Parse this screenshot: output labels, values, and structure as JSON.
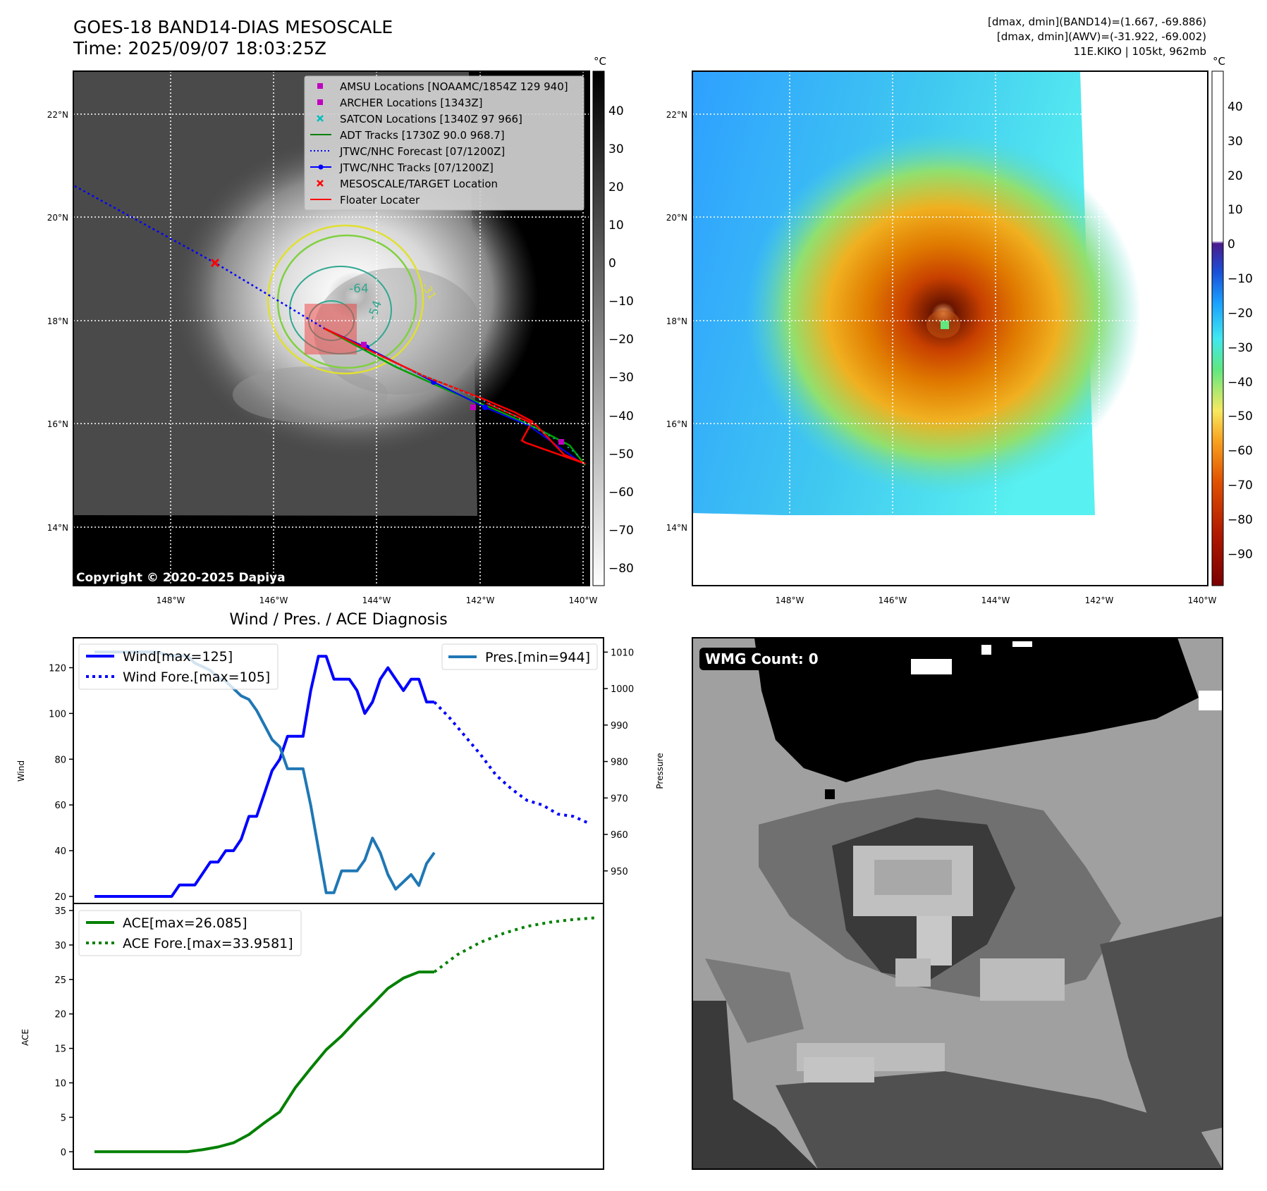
{
  "header": {
    "title_line1": "GOES-18 BAND14-DIAS MESOSCALE",
    "title_line2": "Time: 2025/09/07 18:03:25Z",
    "info_line1": "[dmax, dmin](BAND14)=(1.667, -69.886)",
    "info_line2": "[dmax, dmin](AWV)=(-31.922, -69.002)",
    "info_line3": "11E.KIKO | 105kt, 962mb"
  },
  "map_axes": {
    "lat_labels": [
      "22°N",
      "20°N",
      "18°N",
      "16°N",
      "14°N"
    ],
    "lon_labels": [
      "148°W",
      "146°W",
      "144°W",
      "142°W",
      "140°W"
    ]
  },
  "ir_panel": {
    "copyright": "Copyright © 2020-2025 Dapiya",
    "colorbar_unit": "°C",
    "colorbar_ticks": [
      "40",
      "30",
      "20",
      "10",
      "0",
      "−10",
      "−20",
      "−30",
      "−40",
      "−50",
      "−60",
      "−70",
      "−80"
    ],
    "contour_labels": [
      "-64",
      "-54",
      "-31"
    ],
    "legend": [
      {
        "label": "AMSU Locations [NOAAMC/1854Z 129 940]",
        "color": "#c000c0",
        "marker": "square"
      },
      {
        "label": "ARCHER Locations [1343Z]",
        "color": "#c000c0",
        "marker": "square"
      },
      {
        "label": "SATCON Locations [1340Z 97 966]",
        "color": "#00bfbf",
        "marker": "x"
      },
      {
        "label": "ADT Tracks [1730Z 90.0 968.7]",
        "color": "#008000",
        "marker": "line"
      },
      {
        "label": "JTWC/NHC Forecast [07/1200Z]",
        "color": "#0000ff",
        "marker": "dotted"
      },
      {
        "label": "JTWC/NHC Tracks [07/1200Z]",
        "color": "#0000ff",
        "marker": "line-dot"
      },
      {
        "label": "MESOSCALE/TARGET Location",
        "color": "#ff0000",
        "marker": "x"
      },
      {
        "label": "Floater Locater",
        "color": "#ff0000",
        "marker": "line"
      }
    ]
  },
  "wv_panel": {
    "colorbar_unit": "°C",
    "colorbar_ticks": [
      "40",
      "30",
      "20",
      "10",
      "0",
      "−10",
      "−20",
      "−30",
      "−40",
      "−50",
      "−60",
      "−70",
      "−80",
      "−90"
    ]
  },
  "wmg_panel": {
    "label": "WMG Count: 0"
  },
  "chart_data": [
    {
      "type": "line",
      "title": "Wind / Pres. / ACE Diagnosis",
      "ylabel": "Wind",
      "ylabel2": "Pressure",
      "ylim": [
        20,
        130
      ],
      "ylim2": [
        943,
        1012
      ],
      "xlim": [
        0,
        65
      ],
      "yticks": [
        20,
        40,
        60,
        80,
        100,
        120
      ],
      "yticks2": [
        950,
        960,
        970,
        980,
        990,
        1000,
        1010
      ],
      "series": [
        {
          "name": "Wind[max=125]",
          "color": "#0000ff",
          "style": "solid",
          "x": [
            0,
            2,
            4,
            6,
            8,
            9,
            10,
            11,
            12,
            13,
            14,
            15,
            16,
            17,
            18,
            19,
            20,
            21,
            22,
            23,
            24,
            25,
            26,
            27,
            28,
            29,
            30,
            31,
            32,
            33,
            34,
            35,
            36,
            37,
            38,
            39,
            40,
            41,
            42,
            43,
            44
          ],
          "y": [
            20,
            20,
            20,
            20,
            20,
            20,
            20,
            25,
            25,
            25,
            30,
            35,
            35,
            40,
            40,
            45,
            55,
            55,
            65,
            75,
            80,
            90,
            90,
            90,
            110,
            125,
            125,
            115,
            115,
            115,
            110,
            100,
            105,
            115,
            120,
            115,
            110,
            115,
            115,
            105,
            105
          ]
        },
        {
          "name": "Wind Fore.[max=105]",
          "color": "#0000ff",
          "style": "dotted",
          "x": [
            44,
            46,
            48,
            50,
            52,
            54,
            56,
            58,
            60,
            62,
            64
          ],
          "y": [
            105,
            98,
            90,
            82,
            73,
            67,
            62,
            60,
            56,
            55,
            52
          ]
        },
        {
          "name": "Pres.[min=944]",
          "color": "#1f77b4",
          "style": "solid",
          "axis": "right",
          "x": [
            0,
            2,
            4,
            6,
            8,
            10,
            12,
            13,
            14,
            15,
            16,
            17,
            18,
            19,
            20,
            21,
            22,
            23,
            24,
            25,
            26,
            27,
            28,
            29,
            30,
            31,
            32,
            33,
            34,
            35,
            36,
            37,
            38,
            39,
            40,
            41,
            42,
            43,
            44
          ],
          "y": [
            1010,
            1010,
            1010,
            1010,
            1010,
            1009,
            1009,
            1007,
            1006,
            1005,
            1003,
            1002,
            1000,
            998,
            997,
            994,
            990,
            986,
            984,
            978,
            978,
            978,
            968,
            956,
            944,
            944,
            950,
            950,
            950,
            953,
            959,
            955,
            949,
            945,
            947,
            949,
            946,
            952,
            955
          ]
        }
      ]
    },
    {
      "type": "line",
      "ylabel": "ACE",
      "ylim": [
        -1.5,
        35
      ],
      "xlim": [
        0,
        65
      ],
      "yticks": [
        0,
        5,
        10,
        15,
        20,
        25,
        30,
        35
      ],
      "series": [
        {
          "name": "ACE[max=26.085]",
          "color": "#008000",
          "style": "solid",
          "x": [
            0,
            4,
            8,
            12,
            14,
            16,
            18,
            20,
            22,
            24,
            26,
            28,
            30,
            32,
            34,
            36,
            38,
            40,
            42,
            44
          ],
          "y": [
            0,
            0,
            0,
            0,
            0.3,
            0.7,
            1.3,
            2.5,
            4.2,
            5.8,
            9.3,
            12.1,
            14.8,
            16.8,
            19.2,
            21.4,
            23.7,
            25.2,
            26.085,
            26.085
          ]
        },
        {
          "name": "ACE Fore.[max=33.9581]",
          "color": "#008000",
          "style": "dotted",
          "x": [
            44,
            47,
            50,
            53,
            56,
            59,
            62,
            65
          ],
          "y": [
            26.085,
            28.6,
            30.4,
            31.7,
            32.7,
            33.3,
            33.7,
            33.9581
          ]
        }
      ]
    }
  ]
}
